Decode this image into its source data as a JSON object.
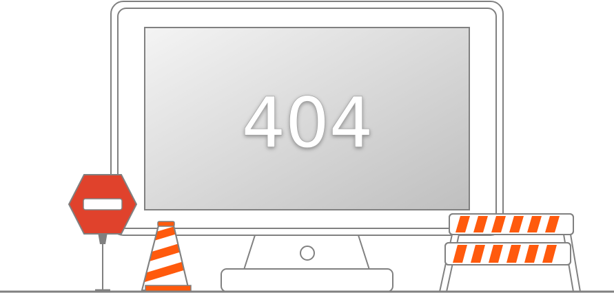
{
  "error": {
    "code": "404"
  },
  "colors": {
    "outline": "#808080",
    "screen_light": "#f4f4f4",
    "screen_dark": "#c2c2c2",
    "sign_red": "#e0422c",
    "stripe_orange": "#ff5a0d",
    "background": "#ffffff"
  },
  "icons": {
    "stop_sign": "no-entry-sign-icon",
    "cone": "traffic-cone-icon",
    "barrier": "road-barrier-icon",
    "monitor": "monitor-icon"
  }
}
